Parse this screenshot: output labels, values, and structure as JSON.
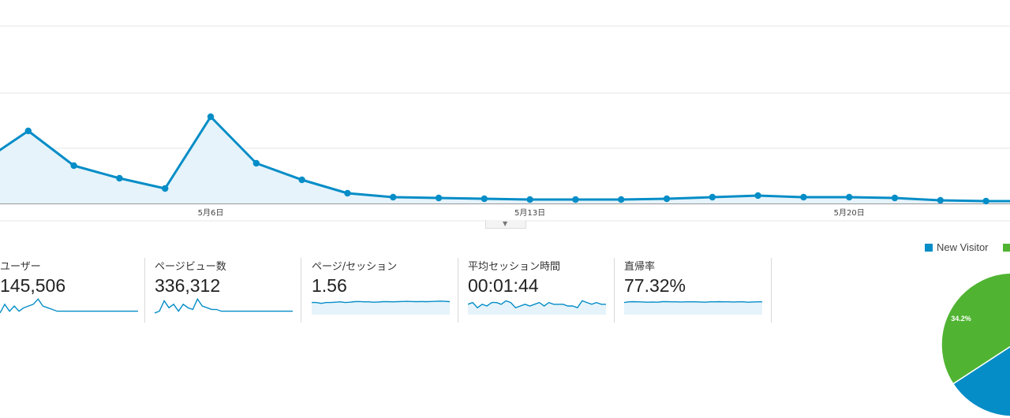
{
  "chart_data": [
    {
      "type": "area",
      "x_tick_labels": [
        "5月6日",
        "5月13日",
        "5月20日"
      ],
      "values": [
        205,
        166,
        210,
        226,
        239,
        148,
        207,
        228,
        245,
        250,
        251,
        252,
        253,
        253,
        253,
        252,
        250,
        248,
        250,
        250,
        251,
        254,
        255,
        255
      ],
      "grid": true,
      "color": "#058dc7",
      "fill": "#e6f3fa"
    },
    {
      "type": "pie",
      "legend": [
        "New Visitor"
      ],
      "slices": [
        {
          "name": "New Visitor",
          "percent": 65.8,
          "color": "#058dc7"
        },
        {
          "name": "",
          "label": "34.2%",
          "percent": 34.2,
          "color": "#50b432"
        }
      ]
    }
  ],
  "metrics": [
    {
      "label": "ユーザー",
      "value": "145,506",
      "spark": [
        9,
        4,
        8,
        5,
        8,
        6,
        5,
        4,
        1,
        5,
        6,
        7,
        8,
        8,
        8,
        8,
        8,
        8,
        8,
        8,
        8,
        8,
        8,
        8,
        8,
        8,
        8,
        8,
        8,
        8
      ],
      "fill": false
    },
    {
      "label": "ページビュー数",
      "value": "336,312",
      "spark": [
        9,
        8,
        2,
        6,
        4,
        8,
        4,
        6,
        7,
        1,
        5,
        6,
        7,
        7,
        8,
        8,
        8,
        8,
        8,
        8,
        8,
        8,
        8,
        8,
        8,
        8,
        8,
        8,
        8,
        8
      ],
      "fill": false
    },
    {
      "label": "ページ/セッション",
      "value": "1.56",
      "spark": [
        3,
        3,
        3.5,
        3,
        3,
        2.8,
        2.6,
        3,
        2.8,
        2.5,
        2.4,
        2.6,
        2.6,
        2.8,
        2.7,
        2.5,
        2.5,
        2.6,
        2.5,
        2.4,
        2.3,
        2.4,
        2.5,
        2.4,
        2.5,
        2.4,
        2.3,
        2.2,
        2.3,
        2.5
      ],
      "fill": true
    },
    {
      "label": "平均セッション時間",
      "value": "00:01:44",
      "spark": [
        4,
        3,
        6,
        4,
        5,
        3,
        3,
        4,
        2,
        3,
        6,
        5,
        4,
        5,
        4,
        3,
        5,
        3,
        4,
        4,
        4,
        5,
        5,
        6,
        2,
        3,
        4,
        3,
        4,
        4
      ],
      "fill": true
    },
    {
      "label": "直帰率",
      "value": "77.32%",
      "spark": [
        3,
        2.6,
        2.5,
        2.6,
        2.7,
        2.8,
        2.7,
        2.8,
        2.5,
        2.5,
        2.6,
        2.6,
        2.7,
        2.6,
        2.6,
        2.6,
        2.7,
        2.8,
        2.6,
        2.6,
        2.5,
        2.6,
        2.6,
        2.7,
        2.6,
        2.6,
        2.8,
        2.7,
        2.6,
        2.6
      ],
      "fill": true
    }
  ],
  "legend": {
    "new_visitor": "New Visitor"
  },
  "colors": {
    "primary": "#058dc7",
    "secondary": "#50b432",
    "area_fill": "#e6f3fa",
    "grid": "#e5e5e5"
  }
}
